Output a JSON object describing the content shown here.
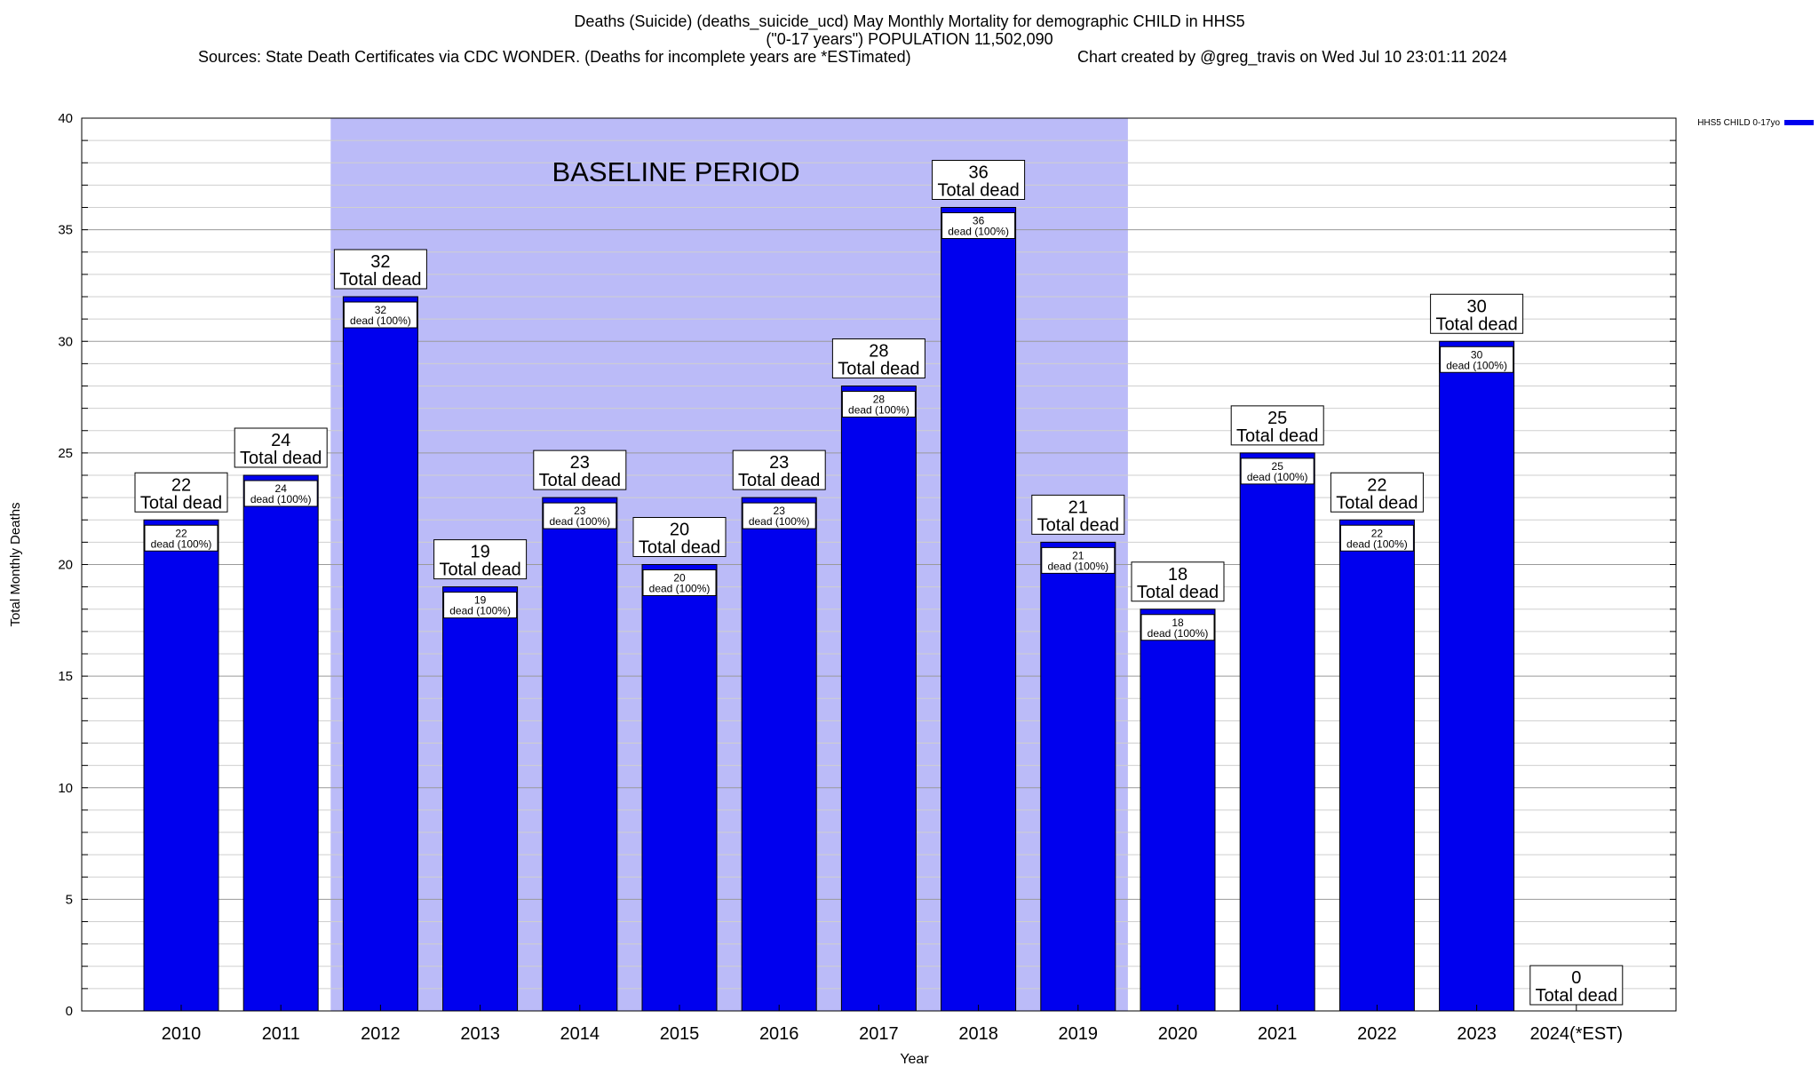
{
  "header": {
    "title_line1": "Deaths (Suicide) (deaths_suicide_ucd) May Monthly Mortality for demographic CHILD in HHS5",
    "title_line2": "(\"0-17 years\") POPULATION 11,502,090",
    "sources": "Sources: State Death Certificates via CDC WONDER. (Deaths for incomplete years are *ESTimated)",
    "credit": "Chart created by @greg_travis on Wed Jul 10 23:01:11 2024"
  },
  "chart_data": {
    "type": "bar",
    "xlabel": "Year",
    "ylabel": "Total Monthly Deaths",
    "ylim": [
      0,
      40
    ],
    "y_ticks": [
      0,
      5,
      10,
      15,
      20,
      25,
      30,
      35,
      40
    ],
    "y_minor_step": 1,
    "grid": true,
    "legend_position": "top-right",
    "baseline_label": "BASELINE PERIOD",
    "baseline_range": [
      "2012",
      "2019"
    ],
    "total_label_text": "Total dead",
    "inner_label_text": "dead (100%)",
    "categories": [
      "2010",
      "2011",
      "2012",
      "2013",
      "2014",
      "2015",
      "2016",
      "2017",
      "2018",
      "2019",
      "2020",
      "2021",
      "2022",
      "2023",
      "2024(*EST)"
    ],
    "series": [
      {
        "name": "HHS5 CHILD 0-17yo",
        "color": "#0000ee",
        "values": [
          22,
          24,
          32,
          19,
          23,
          20,
          23,
          28,
          36,
          21,
          18,
          25,
          22,
          30,
          0
        ]
      }
    ]
  },
  "colors": {
    "bar": "#0000ee",
    "baseline_shade": "#bbbbf8",
    "grid": "#b0b0b0"
  }
}
